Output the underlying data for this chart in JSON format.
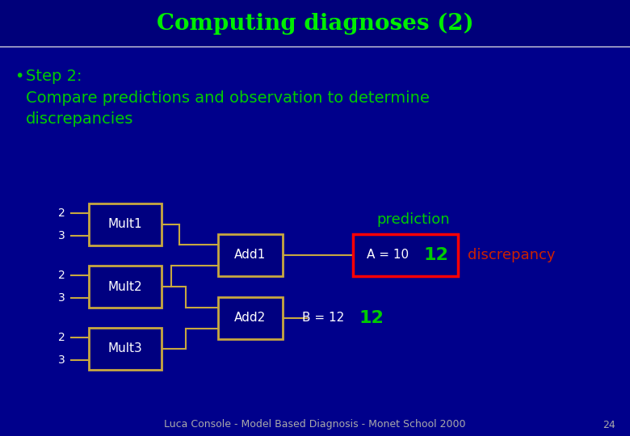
{
  "title": "Computing diagnoses (2)",
  "title_color": "#00ee00",
  "background_color": "#00008B",
  "header_bg_color": "#00008B",
  "bullet_text": "Step 2:",
  "body_line1": "Compare predictions and observation to determine",
  "body_line2": "discrepancies",
  "text_color": "#00cc00",
  "box_fill_color": "#000080",
  "box_edge_color": "#c8a840",
  "red_box_edge_color": "#ff0000",
  "prediction_label": "prediction",
  "discrepancy_label": "discrepancy",
  "discrepancy_color": "#cc2200",
  "footer_text": "Luca Console - Model Based Diagnosis - Monet School 2000",
  "footer_number": "24",
  "footer_color": "#aaaaaa",
  "white": "#ffffff",
  "green": "#00cc00"
}
